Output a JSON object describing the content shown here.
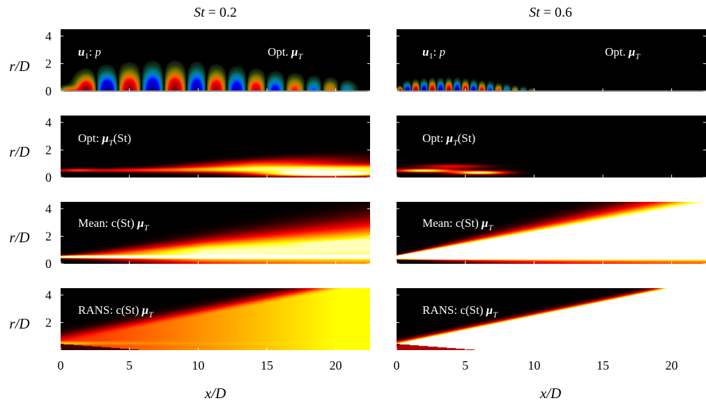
{
  "chart_data": {
    "type": "heatmap",
    "layout": "4 rows x 2 columns of contour panels",
    "columns": [
      {
        "title_prefix": "St",
        "title_value": " = 0.2",
        "St": 0.2
      },
      {
        "title_prefix": "St",
        "title_value": " = 0.6",
        "St": 0.6
      }
    ],
    "rows": [
      {
        "label_left": "u",
        "label_sub": "1",
        "label_rest": ": ",
        "label_italic": "p",
        "label_right": "Opt. ",
        "label_right_bold": "μ",
        "label_right_sub": "T",
        "field": "pressure mode (diverging blue-red colormap)"
      },
      {
        "label": "Opt: ",
        "label_bold": "μ",
        "label_sub": "T",
        "label_rest": "(St)",
        "field": "optimal eddy viscosity (hot colormap)"
      },
      {
        "label": "Mean: c(St) ",
        "label_bold": "μ",
        "label_sub": "T",
        "field": "mean-flow eddy viscosity (hot colormap)"
      },
      {
        "label": "RANS: c(St) ",
        "label_bold": "μ",
        "label_sub": "T",
        "field": "RANS eddy viscosity (hot colormap)"
      }
    ],
    "xlabel": "x/D",
    "ylabel": "r/D",
    "xlim": [
      0,
      22.5
    ],
    "ylim": [
      0,
      4.5
    ],
    "xticks": [
      0,
      5,
      10,
      15,
      20
    ],
    "yticks_rows_1_3": [
      0,
      2,
      4
    ],
    "yticks_row_4": [
      2,
      4
    ],
    "colormaps": {
      "diverging": [
        "#00007f",
        "#0000ff",
        "#00ffff",
        "#ffff00",
        "#ff0000",
        "#7f0000"
      ],
      "hot": [
        "#000000",
        "#7f0000",
        "#ff0000",
        "#ff7f00",
        "#ffff00",
        "#ffffff"
      ]
    },
    "modes": [
      {
        "St": 0.2,
        "lobes_x": [
          0.6,
          1.9,
          3.4,
          5.0,
          6.7,
          8.3,
          9.9,
          11.3,
          12.8,
          14.2,
          15.6,
          17.0,
          18.4,
          19.6,
          20.8
        ],
        "lobe_sign": [
          1,
          1,
          -1,
          1,
          -1,
          1,
          -1,
          1,
          -1,
          1,
          -1,
          1,
          -1,
          1,
          -1
        ],
        "lobe_amp": [
          0.5,
          1.0,
          1.0,
          1.0,
          1.0,
          1.0,
          0.95,
          0.9,
          0.85,
          0.8,
          0.7,
          0.6,
          0.5,
          0.45,
          0.35
        ],
        "lobe_height": [
          0.5,
          1.5,
          1.75,
          1.9,
          2.0,
          2.0,
          1.95,
          1.8,
          1.7,
          1.55,
          1.4,
          1.3,
          1.15,
          1.05,
          0.9
        ]
      },
      {
        "St": 0.6,
        "lobes_x": [
          0.3,
          0.8,
          1.4,
          2.0,
          2.6,
          3.2,
          3.8,
          4.4,
          5.0,
          5.6,
          6.2,
          6.8,
          7.4,
          8.0,
          8.6,
          9.2,
          9.8
        ],
        "lobe_sign": [
          1,
          -1,
          1,
          -1,
          1,
          -1,
          1,
          -1,
          1,
          -1,
          1,
          -1,
          1,
          -1,
          1,
          -1,
          1
        ],
        "lobe_amp": [
          0.9,
          1.0,
          1.0,
          1.0,
          1.0,
          1.0,
          1.0,
          1.0,
          0.95,
          0.9,
          0.8,
          0.7,
          0.6,
          0.5,
          0.4,
          0.3,
          0.2
        ],
        "lobe_height": [
          0.4,
          0.7,
          0.8,
          0.85,
          0.9,
          0.9,
          0.9,
          0.9,
          0.85,
          0.8,
          0.75,
          0.7,
          0.6,
          0.55,
          0.45,
          0.4,
          0.3
        ]
      }
    ]
  }
}
